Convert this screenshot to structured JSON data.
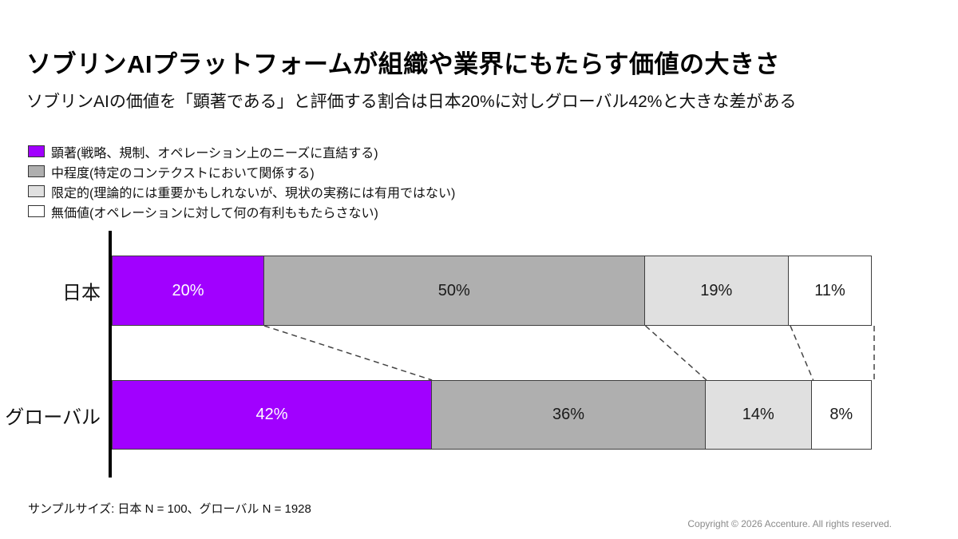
{
  "header": {
    "title": "ソブリンAIプラットフォームが組織や業界にもたらす価値の大きさ",
    "subtitle": "ソブリンAIの価値を「顕著である」と評価する割合は日本20%に対しグローバル42%と大きな差がある"
  },
  "legend": {
    "items": [
      {
        "label": "顕著(戦略、規制、オペレーション上のニーズに直結する)"
      },
      {
        "label": "中程度(特定のコンテクストにおいて関係する)"
      },
      {
        "label": "限定的(理論的には重要かもしれないが、現状の実務には有用ではない)"
      },
      {
        "label": "無価値(オペレーションに対して何の有利ももたらさない)"
      }
    ]
  },
  "chart_data": {
    "type": "bar",
    "orientation": "horizontal",
    "stacked": true,
    "categories": [
      "日本",
      "グローバル"
    ],
    "series": [
      {
        "name": "顕著",
        "color": "#A100FF",
        "text_color": "#FFFFFF",
        "values": [
          20,
          42
        ]
      },
      {
        "name": "中程度",
        "color": "#AFAFAF",
        "text_color": "#1A1A1A",
        "values": [
          50,
          36
        ]
      },
      {
        "name": "限定的",
        "color": "#E0E0E0",
        "text_color": "#1A1A1A",
        "values": [
          19,
          14
        ]
      },
      {
        "name": "無価値",
        "color": "#FFFFFF",
        "text_color": "#1A1A1A",
        "values": [
          11,
          8
        ]
      }
    ],
    "value_suffix": "%",
    "xlim": [
      0,
      100
    ],
    "legend_position": "top-left",
    "grid": false,
    "connector_style": "dashed"
  },
  "footer": {
    "sample_size": "サンプルサイズ: 日本 N = 100、グローバル N = 1928",
    "copyright": "Copyright © 2026 Accenture. All rights reserved."
  }
}
